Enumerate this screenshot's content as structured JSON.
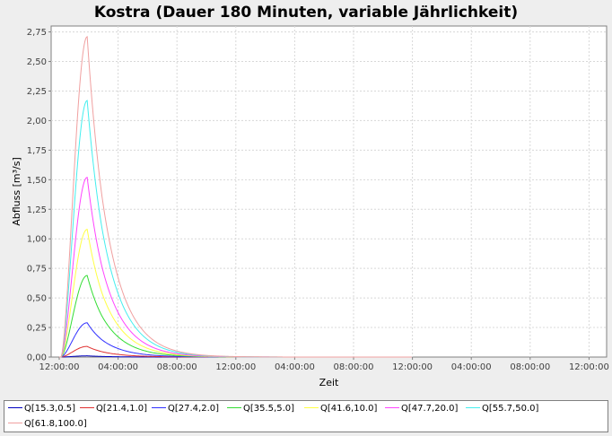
{
  "chart_data": {
    "type": "line",
    "title": "Kostra (Dauer 180 Minuten, variable Jährlichkeit)",
    "xlabel": "Zeit",
    "ylabel": "Abfluss [m³/s]",
    "ylim": [
      0,
      2.8
    ],
    "y_ticks": [
      "0,00",
      "0,25",
      "0,50",
      "0,75",
      "1,00",
      "1,25",
      "1,50",
      "1,75",
      "2,00",
      "2,25",
      "2,50",
      "2,75"
    ],
    "x_ticks": [
      "12:00:00",
      "04:00:00",
      "08:00:00",
      "12:00:00",
      "04:00:00",
      "08:00:00",
      "12:00:00",
      "04:00:00",
      "08:00:00",
      "12:00:00"
    ],
    "x_unit": "hours after first tick",
    "xlim": [
      0,
      36
    ],
    "grid": true,
    "legend_position": "bottom",
    "peak_time_h": 1.9,
    "series": [
      {
        "name": "Q[15.3,0.5]",
        "color": "#0000c0",
        "peak": 0.01
      },
      {
        "name": "Q[21.4,1.0]",
        "color": "#e03030",
        "peak": 0.09
      },
      {
        "name": "Q[27.4,2.0]",
        "color": "#3030ff",
        "peak": 0.29
      },
      {
        "name": "Q[35.5,5.0]",
        "color": "#33dd33",
        "peak": 0.69
      },
      {
        "name": "Q[41.6,10.0]",
        "color": "#ffff44",
        "peak": 1.08
      },
      {
        "name": "Q[47.7,20.0]",
        "color": "#ff44ff",
        "peak": 1.52
      },
      {
        "name": "Q[55.7,50.0]",
        "color": "#44eeee",
        "peak": 2.17
      },
      {
        "name": "Q[61.8,100.0]",
        "color": "#f0a0a0",
        "peak": 2.71
      }
    ]
  }
}
